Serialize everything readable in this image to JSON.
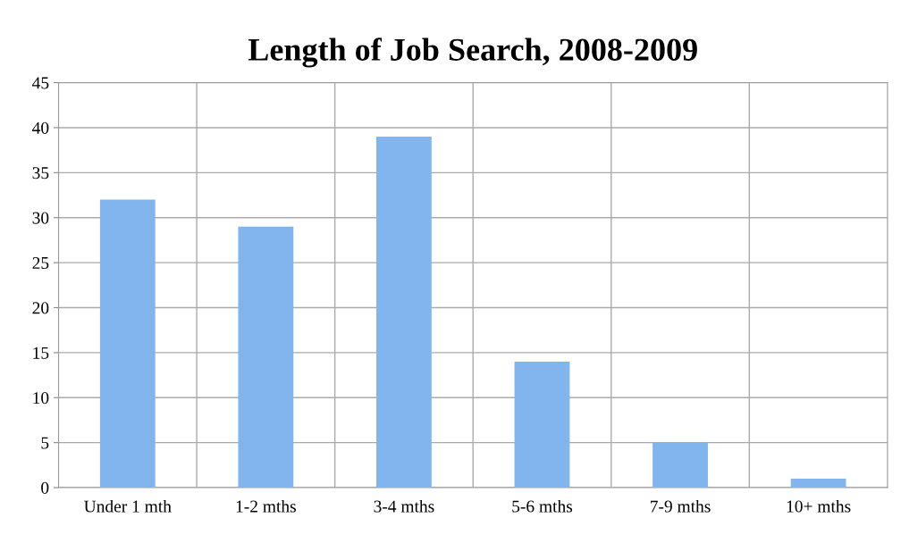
{
  "chart_data": {
    "type": "bar",
    "title": "Length of Job Search, 2008-2009",
    "categories": [
      "Under 1 mth",
      "1-2 mths",
      "3-4 mths",
      "5-6 mths",
      "7-9 mths",
      "10+ mths"
    ],
    "values": [
      32,
      29,
      39,
      14,
      5,
      1
    ],
    "color": "#82b4ee",
    "ylim": [
      0,
      45
    ],
    "yticks": [
      0,
      5,
      10,
      15,
      20,
      25,
      30,
      35,
      40,
      45
    ],
    "grid": true
  }
}
